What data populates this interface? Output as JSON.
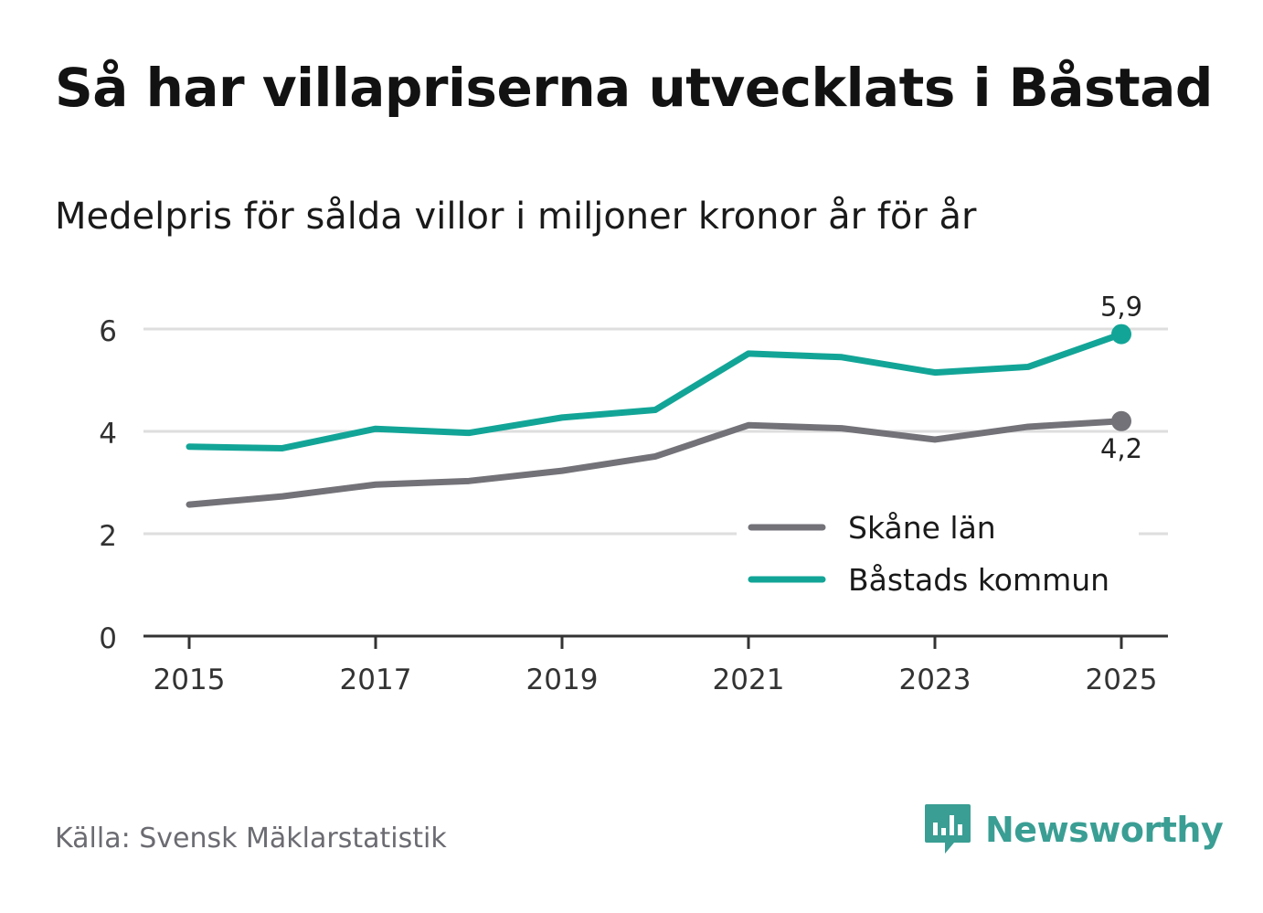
{
  "title": "Så har villapriserna utvecklats i Båstad",
  "subtitle": "Medelpris för sålda villor i miljoner kronor år för år",
  "source": "Källa: Svensk Mäklarstatistik",
  "brand": {
    "name": "Newsworthy",
    "icon": "newsworthy-logo-icon"
  },
  "colors": {
    "skane": "#727278",
    "bastad": "#12a597",
    "grid": "#dedede",
    "axis": "#333333"
  },
  "chart_data": {
    "type": "line",
    "title": "Så har villapriserna utvecklats i Båstad",
    "subtitle": "Medelpris för sålda villor i miljoner kronor år för år",
    "x": [
      2015,
      2016,
      2017,
      2018,
      2019,
      2020,
      2021,
      2022,
      2023,
      2024,
      2025
    ],
    "xticks": [
      "2015",
      "2017",
      "2019",
      "2021",
      "2023",
      "2025"
    ],
    "yticks": [
      "0",
      "2",
      "4",
      "6"
    ],
    "ylim": [
      0,
      6.5
    ],
    "xlim": [
      2014.75,
      2025.25
    ],
    "grid": true,
    "legend_position": "bottom-right",
    "series": [
      {
        "name": "Skåne län",
        "color": "#727278",
        "values": [
          2.57,
          2.73,
          2.96,
          3.03,
          3.23,
          3.51,
          4.12,
          4.06,
          3.84,
          4.09,
          4.2
        ],
        "end_label": "4,2",
        "end_label_position": "below"
      },
      {
        "name": "Båstads kommun",
        "color": "#12a597",
        "values": [
          3.7,
          3.67,
          4.05,
          3.97,
          4.27,
          4.42,
          5.52,
          5.45,
          5.15,
          5.26,
          5.9
        ],
        "end_label": "5,9",
        "end_label_position": "above"
      }
    ]
  }
}
